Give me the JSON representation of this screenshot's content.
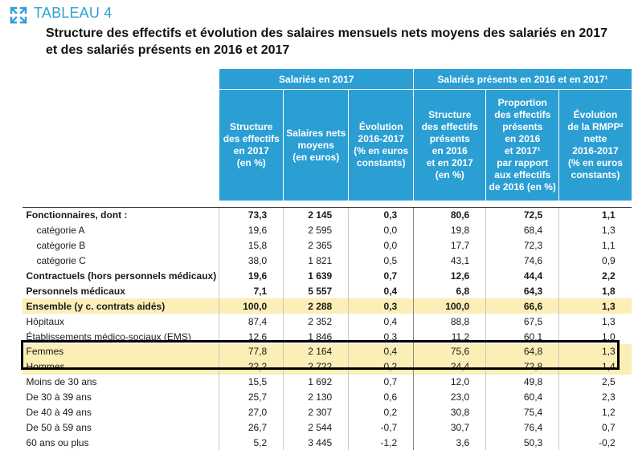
{
  "header": {
    "tableau_label": "TABLEAU 4",
    "title_line1": "Structure des effectifs et évolution des salaires mensuels nets moyens des salariés en 2017",
    "title_line2": "et des salariés présents en 2016 et 2017"
  },
  "table": {
    "group_headers": [
      "Salariés en 2017",
      "Salariés présents en 2016 et en 2017¹"
    ],
    "columns": [
      [
        "Structure",
        "des effectifs",
        "en 2017",
        "(en %)"
      ],
      [
        "Salaires nets",
        "moyens",
        "(en euros)"
      ],
      [
        "Évolution",
        "2016-2017",
        "(% en euros",
        "constants)"
      ],
      [
        "Structure",
        "des effectifs",
        "présents",
        "en 2016",
        "et en 2017",
        "(en %)"
      ],
      [
        "Proportion",
        "des effectifs",
        "présents",
        "en 2016",
        "et 2017¹",
        "par rapport",
        "aux effectifs",
        "de 2016 (en %)"
      ],
      [
        "Évolution",
        "de la RMPP²",
        "nette",
        "2016-2017",
        "(% en euros",
        "constants)"
      ]
    ],
    "rows": [
      {
        "label": "Fonctionnaires, dont :",
        "values": [
          "73,3",
          "2 145",
          "0,3",
          "80,6",
          "72,5",
          "1,1"
        ]
      },
      {
        "label": "catégorie A",
        "values": [
          "19,6",
          "2 595",
          "0,0",
          "19,8",
          "68,4",
          "1,3"
        ]
      },
      {
        "label": "catégorie B",
        "values": [
          "15,8",
          "2 365",
          "0,0",
          "17,7",
          "72,3",
          "1,1"
        ]
      },
      {
        "label": "catégorie C",
        "values": [
          "38,0",
          "1 821",
          "0,5",
          "43,1",
          "74,6",
          "0,9"
        ]
      },
      {
        "label": "Contractuels (hors personnels médicaux)",
        "values": [
          "19,6",
          "1 639",
          "0,7",
          "12,6",
          "44,4",
          "2,2"
        ]
      },
      {
        "label": "Personnels médicaux",
        "values": [
          "7,1",
          "5 557",
          "0,4",
          "6,8",
          "64,3",
          "1,8"
        ]
      },
      {
        "label": "Ensemble (y c. contrats aidés)",
        "values": [
          "100,0",
          "2 288",
          "0,3",
          "100,0",
          "66,6",
          "1,3"
        ]
      },
      {
        "label": "Hôpitaux",
        "values": [
          "87,4",
          "2 352",
          "0,4",
          "88,8",
          "67,5",
          "1,3"
        ]
      },
      {
        "label": "Établissements médico-sociaux (EMS)",
        "values": [
          "12,6",
          "1 846",
          "0,3",
          "11,2",
          "60,1",
          "1,0"
        ]
      },
      {
        "label": "Femmes",
        "values": [
          "77,8",
          "2 164",
          "0,4",
          "75,6",
          "64,8",
          "1,3"
        ]
      },
      {
        "label": "Hommes",
        "values": [
          "22,2",
          "2 722",
          "0,2",
          "24,4",
          "72,8",
          "1,4"
        ]
      },
      {
        "label": "Moins de 30 ans",
        "values": [
          "15,5",
          "1 692",
          "0,7",
          "12,0",
          "49,8",
          "2,5"
        ]
      },
      {
        "label": "De 30 à 39 ans",
        "values": [
          "25,7",
          "2 130",
          "0,6",
          "23,0",
          "60,4",
          "2,3"
        ]
      },
      {
        "label": "De 40 à 49 ans",
        "values": [
          "27,0",
          "2 307",
          "0,2",
          "30,8",
          "75,4",
          "1,2"
        ]
      },
      {
        "label": "De 50 à 59 ans",
        "values": [
          "26,7",
          "2 544",
          "-0,7",
          "30,7",
          "76,4",
          "0,7"
        ]
      },
      {
        "label": "60 ans ou plus",
        "values": [
          "5,2",
          "3 445",
          "-1,2",
          "3,6",
          "50,3",
          "-0,2"
        ]
      }
    ]
  }
}
